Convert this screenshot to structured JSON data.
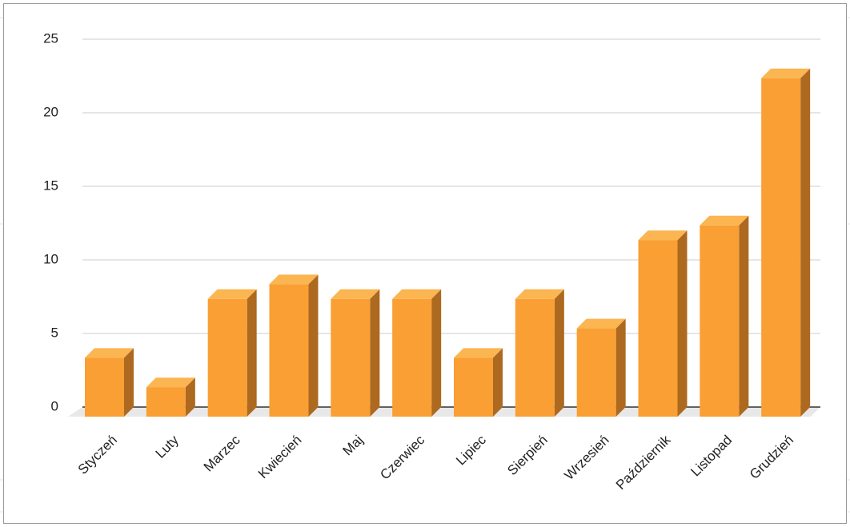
{
  "chart_data": {
    "type": "bar3d",
    "categories": [
      "Styczeń",
      "Luty",
      "Marzec",
      "Kwiecień",
      "Maj",
      "Czerwiec",
      "Lipiec",
      "Sierpień",
      "Wrzesień",
      "Październik",
      "Listopad",
      "Grudzień"
    ],
    "values": [
      4,
      2,
      8,
      9,
      8,
      8,
      4,
      8,
      6,
      12,
      13,
      23
    ],
    "color": "#f99f33",
    "ylim": [
      0,
      25
    ],
    "yticks": [
      0,
      5,
      10,
      15,
      20,
      25
    ],
    "grid": true
  }
}
